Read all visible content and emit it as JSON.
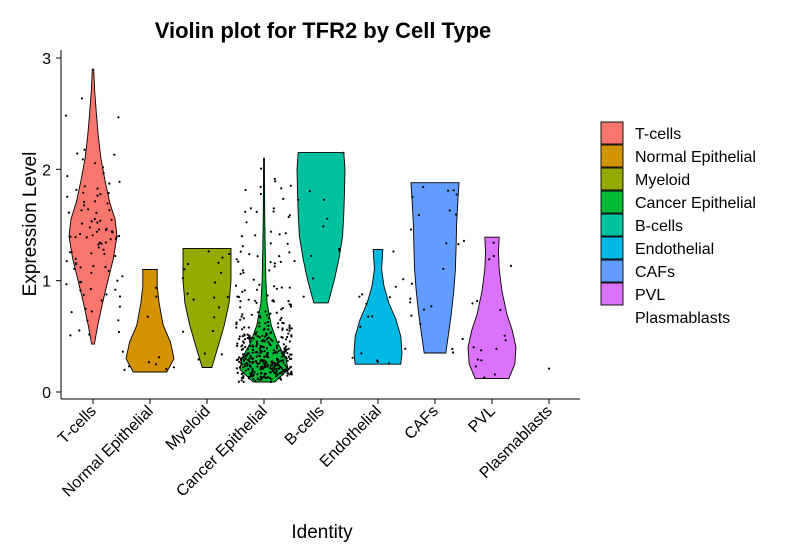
{
  "chart_data": {
    "type": "violin",
    "title": "Violin plot for TFR2 by Cell Type",
    "xlabel": "Identity",
    "ylabel": "Expression Level",
    "ylim": [
      0,
      3
    ],
    "yticks": [
      "0",
      "1",
      "2",
      "3"
    ],
    "categories": [
      "T-cells",
      "Normal Epithelial",
      "Myeloid",
      "Cancer Epithelial",
      "B-cells",
      "Endothelial",
      "CAFs",
      "PVL",
      "Plasmablasts"
    ],
    "legend_position": "right",
    "grid": false,
    "series": [
      {
        "name": "T-cells",
        "color": "#F8766D",
        "min": 0.43,
        "max": 2.9,
        "profile": [
          [
            0.43,
            0.06
          ],
          [
            0.6,
            0.2
          ],
          [
            0.8,
            0.4
          ],
          [
            1.0,
            0.62
          ],
          [
            1.2,
            0.85
          ],
          [
            1.4,
            1.0
          ],
          [
            1.55,
            0.92
          ],
          [
            1.7,
            0.7
          ],
          [
            1.9,
            0.5
          ],
          [
            2.1,
            0.33
          ],
          [
            2.3,
            0.22
          ],
          [
            2.5,
            0.14
          ],
          [
            2.7,
            0.07
          ],
          [
            2.9,
            0.03
          ]
        ]
      },
      {
        "name": "Normal Epithelial",
        "color": "#D39200",
        "min": 0.18,
        "max": 1.1,
        "profile": [
          [
            0.18,
            0.7
          ],
          [
            0.3,
            1.0
          ],
          [
            0.45,
            0.85
          ],
          [
            0.6,
            0.55
          ],
          [
            0.8,
            0.38
          ],
          [
            0.95,
            0.3
          ],
          [
            1.1,
            0.3
          ]
        ]
      },
      {
        "name": "Myeloid",
        "color": "#93AA00",
        "min": 0.22,
        "max": 1.29,
        "profile": [
          [
            0.22,
            0.2
          ],
          [
            0.4,
            0.45
          ],
          [
            0.6,
            0.72
          ],
          [
            0.8,
            0.92
          ],
          [
            1.0,
            1.0
          ],
          [
            1.15,
            1.0
          ],
          [
            1.29,
            1.0
          ]
        ]
      },
      {
        "name": "Cancer Epithelial",
        "color": "#00BA38",
        "min": 0.09,
        "max": 2.1,
        "profile": [
          [
            0.09,
            0.45
          ],
          [
            0.2,
            1.0
          ],
          [
            0.3,
            0.92
          ],
          [
            0.45,
            0.55
          ],
          [
            0.6,
            0.3
          ],
          [
            0.8,
            0.13
          ],
          [
            1.0,
            0.08
          ],
          [
            1.3,
            0.05
          ],
          [
            1.6,
            0.03
          ],
          [
            2.1,
            0.015
          ]
        ]
      },
      {
        "name": "B-cells",
        "color": "#00C19F",
        "min": 0.8,
        "max": 2.15,
        "profile": [
          [
            0.8,
            0.3
          ],
          [
            1.0,
            0.55
          ],
          [
            1.2,
            0.75
          ],
          [
            1.4,
            0.9
          ],
          [
            1.6,
            0.95
          ],
          [
            1.8,
            0.98
          ],
          [
            2.0,
            1.0
          ],
          [
            2.15,
            0.95
          ]
        ]
      },
      {
        "name": "Endothelial",
        "color": "#00B9E3",
        "min": 0.25,
        "max": 1.28,
        "profile": [
          [
            0.25,
            0.95
          ],
          [
            0.35,
            1.0
          ],
          [
            0.5,
            0.95
          ],
          [
            0.65,
            0.75
          ],
          [
            0.8,
            0.45
          ],
          [
            0.95,
            0.25
          ],
          [
            1.1,
            0.15
          ],
          [
            1.28,
            0.2
          ]
        ]
      },
      {
        "name": "CAFs",
        "color": "#619CFF",
        "min": 0.35,
        "max": 1.88,
        "profile": [
          [
            0.35,
            0.45
          ],
          [
            0.5,
            0.55
          ],
          [
            0.7,
            0.68
          ],
          [
            0.9,
            0.78
          ],
          [
            1.1,
            0.85
          ],
          [
            1.3,
            0.88
          ],
          [
            1.5,
            0.9
          ],
          [
            1.7,
            0.95
          ],
          [
            1.88,
            1.0
          ]
        ]
      },
      {
        "name": "PVL",
        "color": "#DB72FB",
        "min": 0.12,
        "max": 1.39,
        "profile": [
          [
            0.12,
            0.7
          ],
          [
            0.25,
            0.95
          ],
          [
            0.4,
            1.0
          ],
          [
            0.55,
            0.85
          ],
          [
            0.7,
            0.62
          ],
          [
            0.9,
            0.42
          ],
          [
            1.1,
            0.3
          ],
          [
            1.25,
            0.27
          ],
          [
            1.39,
            0.3
          ]
        ]
      },
      {
        "name": "Plasmablasts",
        "color": "",
        "min": 0.21,
        "max": 0.21,
        "profile": []
      }
    ]
  }
}
